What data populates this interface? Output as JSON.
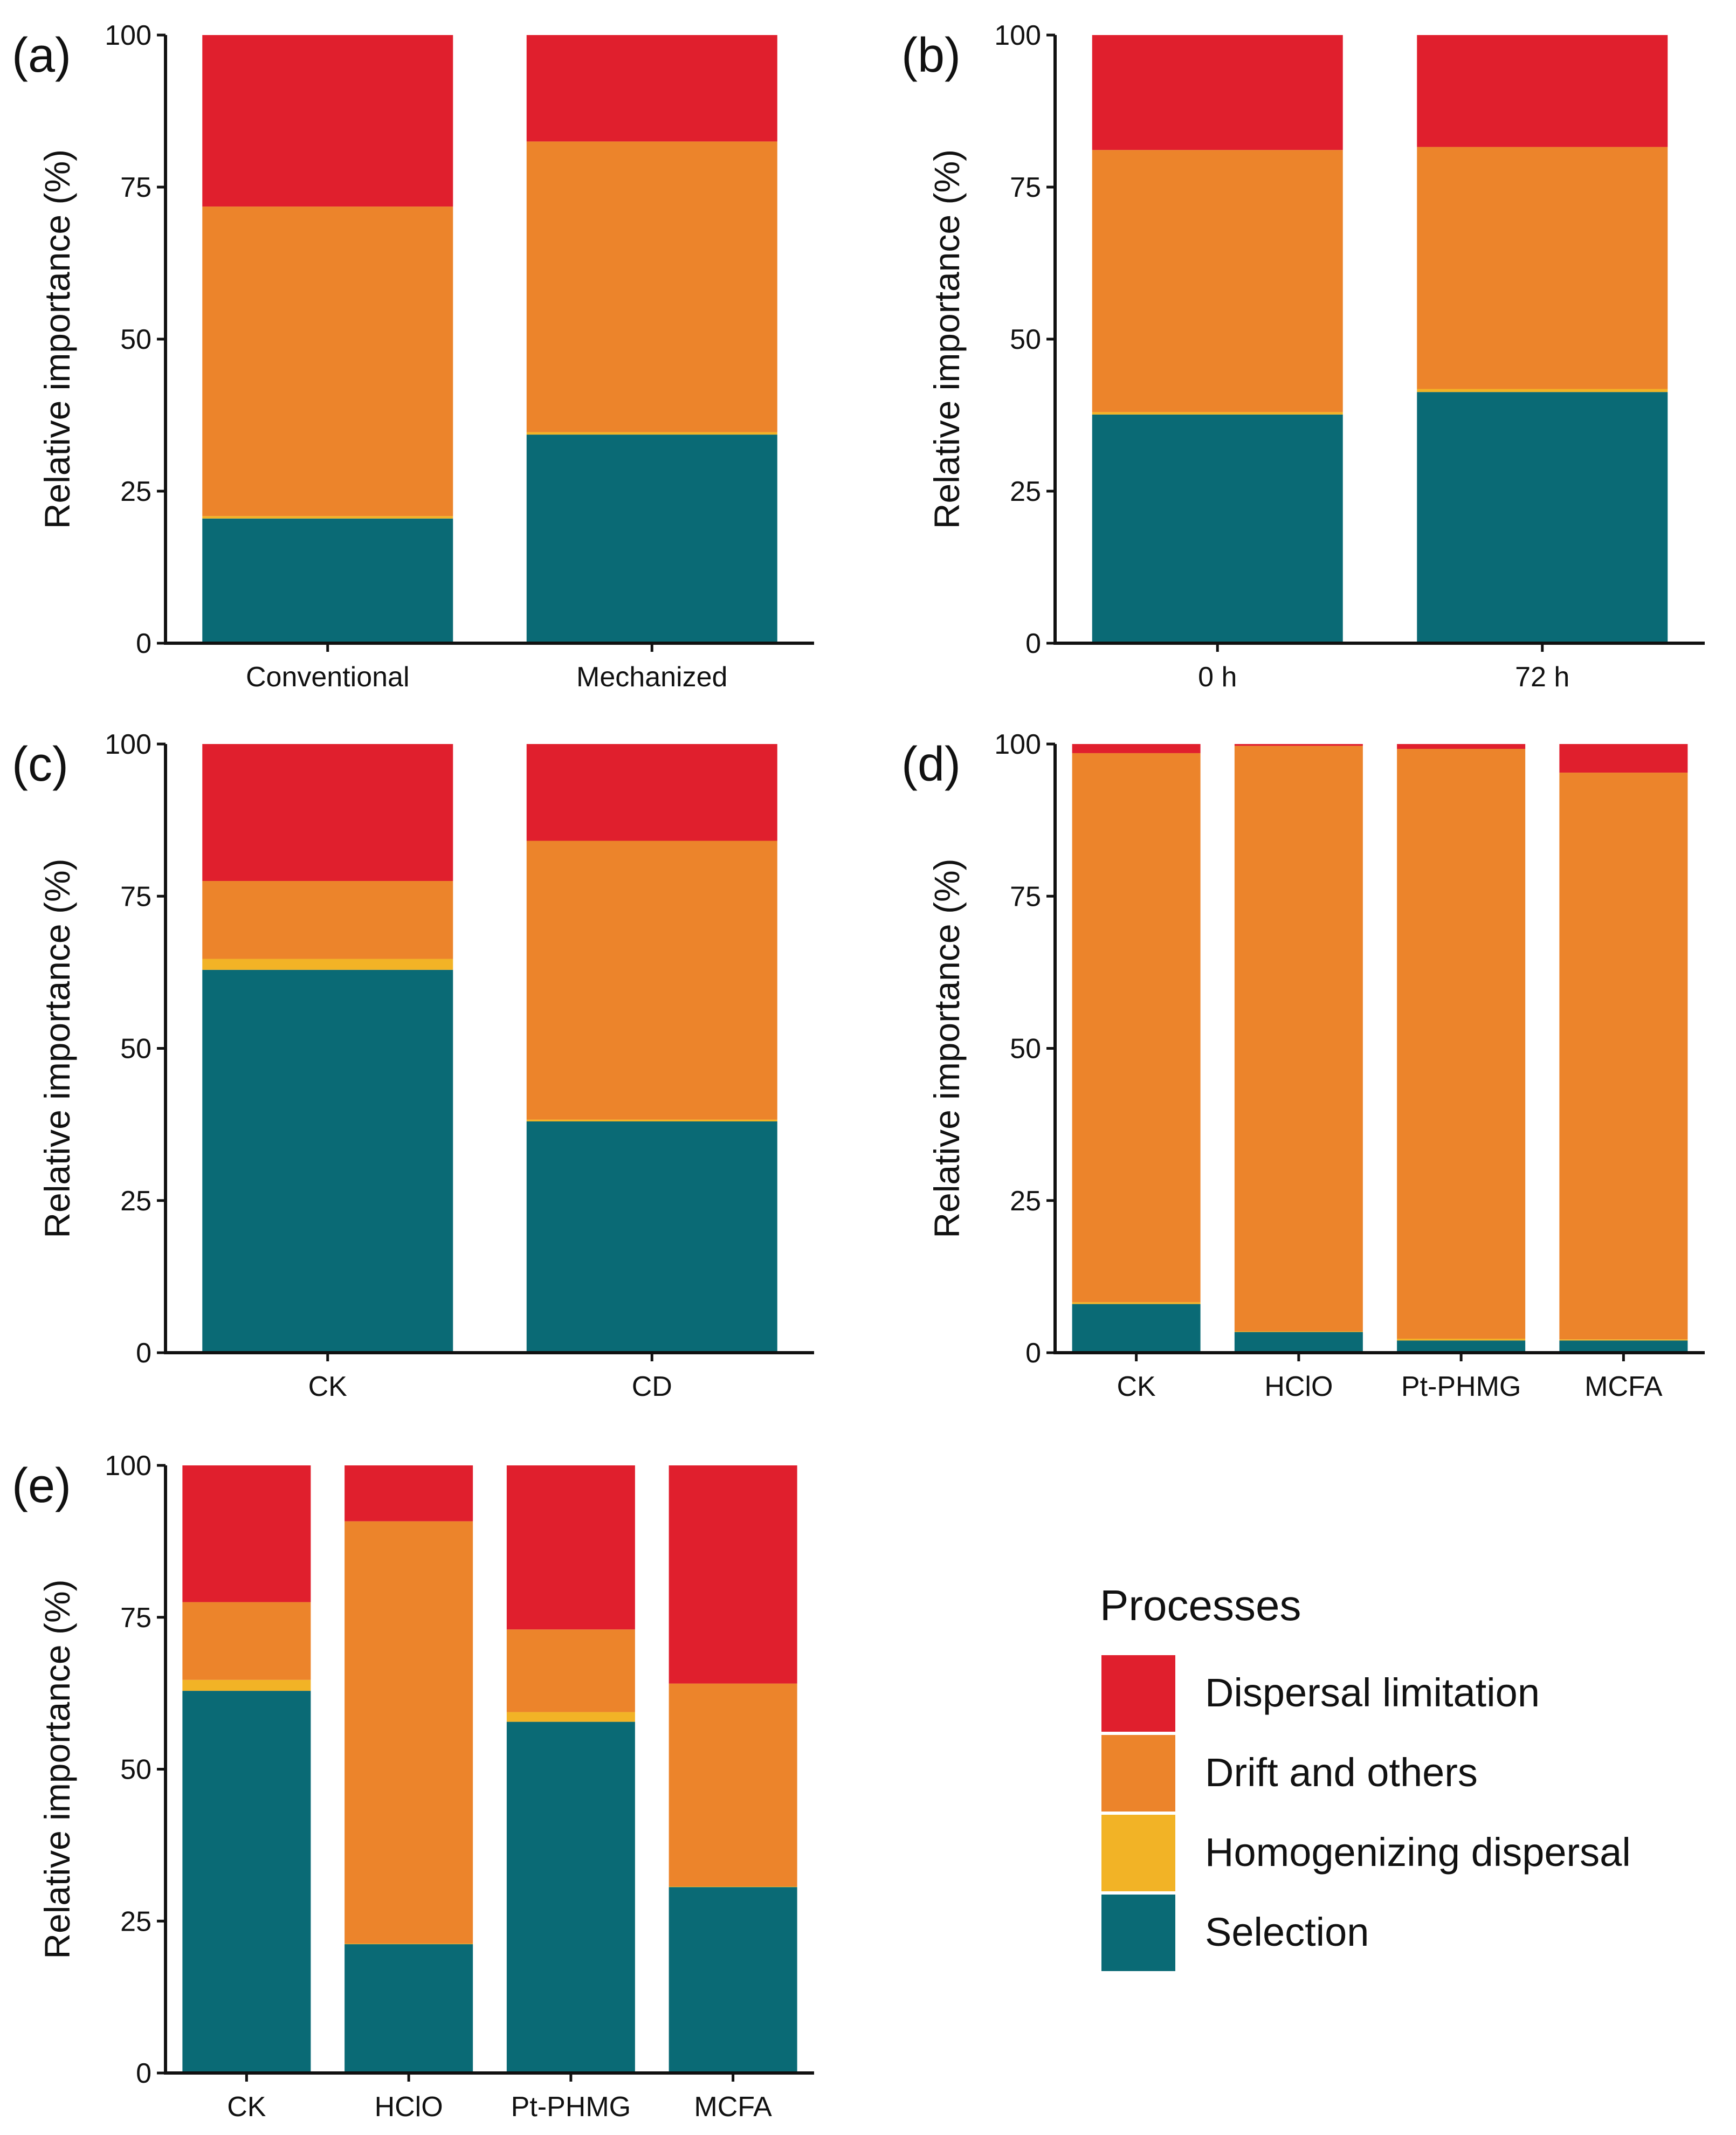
{
  "legend": {
    "title": "Processes",
    "items": [
      {
        "name": "Dispersal limitation",
        "color": "#e01f2d"
      },
      {
        "name": "Drift and others",
        "color": "#ec842b"
      },
      {
        "name": "Homogenizing dispersal",
        "color": "#f2b326"
      },
      {
        "name": "Selection",
        "color": "#0a6a75"
      }
    ]
  },
  "chart_data": [
    {
      "panel": "(a)",
      "type": "bar",
      "stacked": true,
      "ylabel": "Relative importance (%)",
      "ylim": [
        0,
        100
      ],
      "yticks": [
        0,
        25,
        50,
        75,
        100
      ],
      "categories": [
        "Conventional",
        "Mechanized"
      ],
      "series": [
        {
          "name": "Selection",
          "values": [
            20.5,
            34.3
          ]
        },
        {
          "name": "Homogenizing dispersal",
          "values": [
            0.4,
            0.4
          ]
        },
        {
          "name": "Drift and others",
          "values": [
            50.9,
            47.8
          ]
        },
        {
          "name": "Dispersal limitation",
          "values": [
            28.2,
            17.5
          ]
        }
      ]
    },
    {
      "panel": "(b)",
      "type": "bar",
      "stacked": true,
      "ylabel": "Relative importance (%)",
      "ylim": [
        0,
        100
      ],
      "yticks": [
        0,
        25,
        50,
        75,
        100
      ],
      "categories": [
        "0 h",
        "72 h"
      ],
      "series": [
        {
          "name": "Selection",
          "values": [
            37.6,
            41.3
          ]
        },
        {
          "name": "Homogenizing dispersal",
          "values": [
            0.4,
            0.5
          ]
        },
        {
          "name": "Drift and others",
          "values": [
            43.1,
            39.8
          ]
        },
        {
          "name": "Dispersal limitation",
          "values": [
            18.9,
            18.4
          ]
        }
      ]
    },
    {
      "panel": "(c)",
      "type": "bar",
      "stacked": true,
      "ylabel": "Relative importance (%)",
      "ylim": [
        0,
        100
      ],
      "yticks": [
        0,
        25,
        50,
        75,
        100
      ],
      "categories": [
        "CK",
        "CD"
      ],
      "series": [
        {
          "name": "Selection",
          "values": [
            62.9,
            38.0
          ]
        },
        {
          "name": "Homogenizing dispersal",
          "values": [
            1.8,
            0.3
          ]
        },
        {
          "name": "Drift and others",
          "values": [
            12.8,
            45.8
          ]
        },
        {
          "name": "Dispersal limitation",
          "values": [
            22.5,
            15.9
          ]
        }
      ]
    },
    {
      "panel": "(d)",
      "type": "bar",
      "stacked": true,
      "ylabel": "Relative importance (%)",
      "ylim": [
        0,
        100
      ],
      "yticks": [
        0,
        25,
        50,
        75,
        100
      ],
      "categories": [
        "CK",
        "HClO",
        "Pt-PHMG",
        "MCFA"
      ],
      "series": [
        {
          "name": "Selection",
          "values": [
            8.0,
            3.4,
            2.0,
            2.0
          ]
        },
        {
          "name": "Homogenizing dispersal",
          "values": [
            0.3,
            0.1,
            0.3,
            0.2
          ]
        },
        {
          "name": "Drift and others",
          "values": [
            90.2,
            96.2,
            96.9,
            93.1
          ]
        },
        {
          "name": "Dispersal limitation",
          "values": [
            1.5,
            0.3,
            0.8,
            4.7
          ]
        }
      ]
    },
    {
      "panel": "(e)",
      "type": "bar",
      "stacked": true,
      "ylabel": "Relative importance (%)",
      "ylim": [
        0,
        100
      ],
      "yticks": [
        0,
        25,
        50,
        75,
        100
      ],
      "categories": [
        "CK",
        "HClO",
        "Pt-PHMG",
        "MCFA"
      ],
      "series": [
        {
          "name": "Selection",
          "values": [
            62.9,
            21.2,
            57.8,
            30.6
          ]
        },
        {
          "name": "Homogenizing dispersal",
          "values": [
            1.8,
            0.1,
            1.6,
            0.1
          ]
        },
        {
          "name": "Drift and others",
          "values": [
            12.8,
            69.5,
            13.6,
            33.4
          ]
        },
        {
          "name": "Dispersal limitation",
          "values": [
            22.5,
            9.2,
            27.0,
            35.9
          ]
        }
      ]
    }
  ]
}
